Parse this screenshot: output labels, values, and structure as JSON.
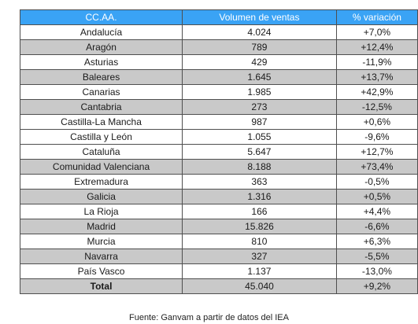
{
  "table": {
    "headers": {
      "region": "CC.AA.",
      "sales": "Volumen de ventas",
      "change": "% variación"
    },
    "rows": [
      {
        "region": "Andalucía",
        "sales": "4.024",
        "change": "+7,0%"
      },
      {
        "region": "Aragón",
        "sales": "789",
        "change": "+12,4%"
      },
      {
        "region": "Asturias",
        "sales": "429",
        "change": "-11,9%"
      },
      {
        "region": "Baleares",
        "sales": "1.645",
        "change": "+13,7%"
      },
      {
        "region": "Canarias",
        "sales": "1.985",
        "change": "+42,9%"
      },
      {
        "region": "Cantabria",
        "sales": "273",
        "change": "-12,5%"
      },
      {
        "region": "Castilla-La Mancha",
        "sales": "987",
        "change": "+0,6%"
      },
      {
        "region": "Castilla y León",
        "sales": "1.055",
        "change": "-9,6%"
      },
      {
        "region": "Cataluña",
        "sales": "5.647",
        "change": "+12,7%"
      },
      {
        "region": "Comunidad Valenciana",
        "sales": "8.188",
        "change": "+73,4%"
      },
      {
        "region": "Extremadura",
        "sales": "363",
        "change": "-0,5%"
      },
      {
        "region": "Galicia",
        "sales": "1.316",
        "change": "+0,5%"
      },
      {
        "region": "La Rioja",
        "sales": "166",
        "change": "+4,4%"
      },
      {
        "region": "Madrid",
        "sales": "15.826",
        "change": "-6,6%"
      },
      {
        "region": "Murcia",
        "sales": "810",
        "change": "+6,3%"
      },
      {
        "region": "Navarra",
        "sales": "327",
        "change": "-5,5%"
      },
      {
        "region": "País Vasco",
        "sales": "1.137",
        "change": "-13,0%"
      }
    ],
    "total": {
      "region": "Total",
      "sales": "45.040",
      "change": "+9,2%"
    }
  },
  "source": "Fuente: Ganvam a partir de datos del IEA",
  "colors": {
    "header_background": "#3aa3f5",
    "header_text": "#ffffff",
    "row_alt_background": "#c9c9c9",
    "row_background": "#ffffff",
    "border": "#4f4f4f"
  }
}
